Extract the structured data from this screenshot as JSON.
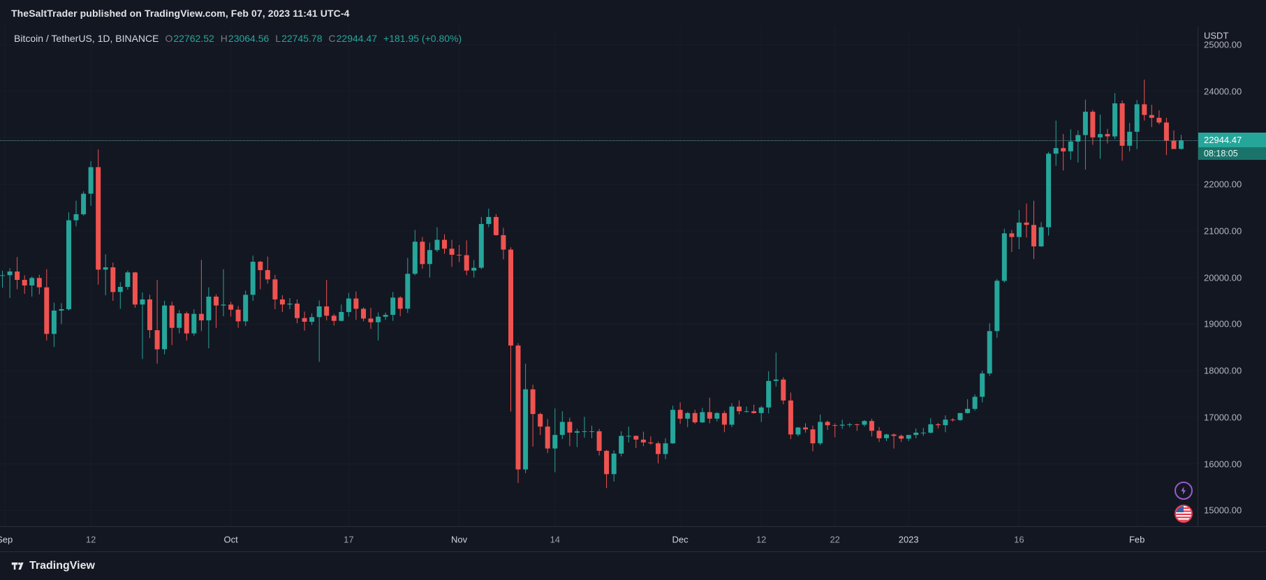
{
  "attribution": {
    "text": "TheSaltTrader published on TradingView.com, Feb 07, 2023 11:41 UTC-4"
  },
  "header": {
    "symbol": "Bitcoin / TetherUS, 1D, BINANCE",
    "o_label": "O",
    "o": "22762.52",
    "h_label": "H",
    "h": "23064.56",
    "l_label": "L",
    "l": "22745.78",
    "c_label": "C",
    "c": "22944.47",
    "change": "+181.95 (+0.80%)"
  },
  "price_axis": {
    "currency": "USDT",
    "ticks": [
      25000,
      24000,
      23000,
      22000,
      21000,
      20000,
      19000,
      18000,
      17000,
      16000,
      15000
    ],
    "current_price": "22944.47",
    "countdown": "08:18:05"
  },
  "time_axis": {
    "labels": [
      {
        "label": "Sep",
        "idx": 0.3,
        "major": true
      },
      {
        "label": "12",
        "idx": 12,
        "major": false
      },
      {
        "label": "Oct",
        "idx": 31,
        "major": true
      },
      {
        "label": "17",
        "idx": 47,
        "major": false
      },
      {
        "label": "Nov",
        "idx": 62,
        "major": true
      },
      {
        "label": "14",
        "idx": 75,
        "major": false
      },
      {
        "label": "Dec",
        "idx": 92,
        "major": true
      },
      {
        "label": "12",
        "idx": 103,
        "major": false
      },
      {
        "label": "22",
        "idx": 113,
        "major": false
      },
      {
        "label": "2023",
        "idx": 123,
        "major": true
      },
      {
        "label": "16",
        "idx": 138,
        "major": false
      },
      {
        "label": "Feb",
        "idx": 154,
        "major": true
      }
    ]
  },
  "markers": {
    "lightning_icon": "lightning-event",
    "flag_icon": "us-flag-event"
  },
  "footer": {
    "brand": "TradingView"
  },
  "colors": {
    "up": "#26a69a",
    "down": "#ef5350",
    "background": "#131722",
    "axis_text": "#b2b5be",
    "badge_bg": "#26a69a",
    "countdown_bg": "#1b746b",
    "grid": "#181d29",
    "last_price_line": "rgba(106,180,168,0.85)"
  },
  "chart_data": {
    "type": "candlestick",
    "title": "Bitcoin / TetherUS, 1D, BINANCE",
    "ylabel": "Price (USDT)",
    "ylim": [
      14660,
      25390
    ],
    "legend_position": "none",
    "grid": "faint",
    "last_price": 22944.47,
    "candles_format": [
      "open",
      "high",
      "low",
      "close"
    ],
    "candles": [
      [
        20050,
        20150,
        19780,
        20050
      ],
      [
        20050,
        20200,
        19560,
        20130
      ],
      [
        20130,
        20440,
        19750,
        19950
      ],
      [
        19950,
        20050,
        19650,
        19830
      ],
      [
        19830,
        20025,
        19590,
        19990
      ],
      [
        19990,
        20060,
        19640,
        19790
      ],
      [
        19790,
        20180,
        18650,
        18790
      ],
      [
        18790,
        19460,
        18510,
        19290
      ],
      [
        19290,
        19450,
        19000,
        19320
      ],
      [
        19320,
        21400,
        19290,
        21230
      ],
      [
        21230,
        21650,
        21100,
        21360
      ],
      [
        21360,
        21850,
        21330,
        21800
      ],
      [
        21800,
        22500,
        21540,
        22370
      ],
      [
        22370,
        22750,
        19850,
        20170
      ],
      [
        20170,
        20500,
        19620,
        20220
      ],
      [
        20220,
        20320,
        19500,
        19690
      ],
      [
        19690,
        19900,
        19330,
        19800
      ],
      [
        19800,
        20150,
        19740,
        20110
      ],
      [
        20110,
        20120,
        19350,
        19420
      ],
      [
        19420,
        19680,
        18250,
        19530
      ],
      [
        19530,
        19630,
        18700,
        18870
      ],
      [
        18870,
        19950,
        18150,
        18460
      ],
      [
        18460,
        19500,
        18350,
        19400
      ],
      [
        19400,
        19480,
        18550,
        18920
      ],
      [
        18920,
        19300,
        18800,
        19230
      ],
      [
        19230,
        19270,
        18650,
        18800
      ],
      [
        18800,
        19320,
        18750,
        19220
      ],
      [
        19220,
        20380,
        18850,
        19080
      ],
      [
        19080,
        19790,
        18480,
        19590
      ],
      [
        19590,
        19640,
        18920,
        19400
      ],
      [
        19400,
        20180,
        19170,
        19420
      ],
      [
        19420,
        19480,
        19160,
        19310
      ],
      [
        19310,
        19390,
        18920,
        19060
      ],
      [
        19060,
        19720,
        18960,
        19630
      ],
      [
        19630,
        20470,
        19500,
        20340
      ],
      [
        20340,
        20360,
        19750,
        20160
      ],
      [
        20160,
        20450,
        19870,
        19960
      ],
      [
        19960,
        20060,
        19320,
        19530
      ],
      [
        19530,
        19620,
        19260,
        19420
      ],
      [
        19420,
        19560,
        19320,
        19440
      ],
      [
        19440,
        19530,
        19020,
        19130
      ],
      [
        19130,
        19270,
        18860,
        19050
      ],
      [
        19050,
        19230,
        18980,
        19150
      ],
      [
        19150,
        19510,
        18190,
        19380
      ],
      [
        19380,
        19950,
        19080,
        19180
      ],
      [
        19180,
        19220,
        18970,
        19070
      ],
      [
        19070,
        19420,
        19060,
        19260
      ],
      [
        19260,
        19670,
        19160,
        19550
      ],
      [
        19550,
        19700,
        19090,
        19330
      ],
      [
        19330,
        19360,
        19060,
        19120
      ],
      [
        19120,
        19350,
        18900,
        19040
      ],
      [
        19040,
        19250,
        18650,
        19160
      ],
      [
        19160,
        19250,
        19090,
        19200
      ],
      [
        19200,
        19690,
        19070,
        19570
      ],
      [
        19570,
        19600,
        19170,
        19330
      ],
      [
        19330,
        20420,
        19240,
        20080
      ],
      [
        20080,
        21020,
        20050,
        20770
      ],
      [
        20770,
        20870,
        20190,
        20290
      ],
      [
        20290,
        20750,
        20000,
        20590
      ],
      [
        20590,
        21080,
        20550,
        20810
      ],
      [
        20810,
        20930,
        20510,
        20620
      ],
      [
        20620,
        20810,
        20230,
        20490
      ],
      [
        20490,
        20700,
        20330,
        20480
      ],
      [
        20480,
        20800,
        20050,
        20150
      ],
      [
        20150,
        20380,
        20000,
        20210
      ],
      [
        20210,
        21300,
        20180,
        21150
      ],
      [
        21150,
        21480,
        21080,
        21300
      ],
      [
        21300,
        21360,
        20900,
        20910
      ],
      [
        20910,
        21070,
        20390,
        20600
      ],
      [
        20600,
        20650,
        17120,
        18540
      ],
      [
        18540,
        18590,
        15590,
        15880
      ],
      [
        15880,
        18150,
        15800,
        17600
      ],
      [
        17600,
        17700,
        16370,
        17070
      ],
      [
        17070,
        17100,
        16620,
        16800
      ],
      [
        16800,
        16960,
        16230,
        16330
      ],
      [
        16330,
        17190,
        15820,
        16620
      ],
      [
        16620,
        17130,
        16530,
        16900
      ],
      [
        16900,
        16990,
        16380,
        16670
      ],
      [
        16670,
        16750,
        16360,
        16700
      ],
      [
        16700,
        17010,
        16560,
        16700
      ],
      [
        16700,
        16820,
        16550,
        16700
      ],
      [
        16700,
        16750,
        16180,
        16280
      ],
      [
        16280,
        16300,
        15480,
        15780
      ],
      [
        15780,
        16290,
        15620,
        16220
      ],
      [
        16220,
        16700,
        16160,
        16600
      ],
      [
        16600,
        16800,
        16460,
        16600
      ],
      [
        16600,
        16610,
        16340,
        16520
      ],
      [
        16520,
        16690,
        16380,
        16460
      ],
      [
        16460,
        16590,
        16410,
        16440
      ],
      [
        16440,
        16480,
        16010,
        16210
      ],
      [
        16210,
        16550,
        16100,
        16440
      ],
      [
        16440,
        17250,
        16430,
        17160
      ],
      [
        17160,
        17320,
        16860,
        16970
      ],
      [
        16970,
        17110,
        16790,
        17090
      ],
      [
        17090,
        17160,
        16860,
        16890
      ],
      [
        16890,
        17200,
        16880,
        17110
      ],
      [
        17110,
        17420,
        16870,
        16970
      ],
      [
        16970,
        17110,
        16910,
        17090
      ],
      [
        17090,
        17140,
        16680,
        16840
      ],
      [
        16840,
        17300,
        16790,
        17230
      ],
      [
        17230,
        17360,
        17060,
        17130
      ],
      [
        17130,
        17230,
        17100,
        17130
      ],
      [
        17130,
        17270,
        17080,
        17090
      ],
      [
        17090,
        17240,
        16900,
        17210
      ],
      [
        17210,
        17990,
        17080,
        17780
      ],
      [
        17780,
        18390,
        17660,
        17810
      ],
      [
        17810,
        17860,
        17280,
        17360
      ],
      [
        17360,
        17530,
        16530,
        16630
      ],
      [
        16630,
        16790,
        16590,
        16780
      ],
      [
        16780,
        16870,
        16670,
        16740
      ],
      [
        16740,
        16820,
        16270,
        16440
      ],
      [
        16440,
        17060,
        16400,
        16900
      ],
      [
        16900,
        16930,
        16730,
        16830
      ],
      [
        16830,
        16870,
        16570,
        16820
      ],
      [
        16820,
        16950,
        16750,
        16840
      ],
      [
        16840,
        16880,
        16790,
        16850
      ],
      [
        16850,
        16860,
        16710,
        16840
      ],
      [
        16840,
        16940,
        16800,
        16920
      ],
      [
        16920,
        16970,
        16590,
        16710
      ],
      [
        16710,
        16790,
        16470,
        16550
      ],
      [
        16550,
        16650,
        16490,
        16630
      ],
      [
        16630,
        16650,
        16330,
        16600
      ],
      [
        16600,
        16630,
        16470,
        16540
      ],
      [
        16540,
        16620,
        16490,
        16620
      ],
      [
        16620,
        16760,
        16550,
        16670
      ],
      [
        16670,
        16770,
        16600,
        16670
      ],
      [
        16670,
        16980,
        16650,
        16850
      ],
      [
        16850,
        16880,
        16760,
        16830
      ],
      [
        16830,
        17040,
        16680,
        16950
      ],
      [
        16950,
        16980,
        16910,
        16940
      ],
      [
        16940,
        17090,
        16920,
        17090
      ],
      [
        17090,
        17390,
        17080,
        17180
      ],
      [
        17180,
        17490,
        17140,
        17440
      ],
      [
        17440,
        18000,
        17320,
        17940
      ],
      [
        17940,
        19020,
        17890,
        18850
      ],
      [
        18850,
        19970,
        18710,
        19930
      ],
      [
        19930,
        21050,
        19890,
        20950
      ],
      [
        20950,
        21020,
        20550,
        20870
      ],
      [
        20870,
        21450,
        20610,
        21180
      ],
      [
        21180,
        21590,
        20860,
        21130
      ],
      [
        21130,
        21650,
        20400,
        20670
      ],
      [
        20670,
        21190,
        20660,
        21080
      ],
      [
        21080,
        22700,
        20900,
        22660
      ],
      [
        22660,
        23370,
        22400,
        22780
      ],
      [
        22780,
        23080,
        22300,
        22710
      ],
      [
        22710,
        23180,
        22530,
        22920
      ],
      [
        22920,
        23160,
        22470,
        23060
      ],
      [
        23060,
        23820,
        22320,
        23560
      ],
      [
        23560,
        23600,
        22850,
        23010
      ],
      [
        23010,
        23500,
        22550,
        23080
      ],
      [
        23080,
        23190,
        22880,
        23030
      ],
      [
        23030,
        23960,
        22970,
        23740
      ],
      [
        23740,
        23800,
        22510,
        22830
      ],
      [
        22830,
        23320,
        22710,
        23130
      ],
      [
        23130,
        23810,
        22760,
        23720
      ],
      [
        23720,
        24250,
        23370,
        23490
      ],
      [
        23490,
        23710,
        23230,
        23430
      ],
      [
        23430,
        23590,
        23290,
        23330
      ],
      [
        23330,
        23430,
        22630,
        22940
      ],
      [
        22940,
        23160,
        22760,
        22760
      ],
      [
        22762.52,
        23064.56,
        22745.78,
        22944.47
      ]
    ]
  }
}
